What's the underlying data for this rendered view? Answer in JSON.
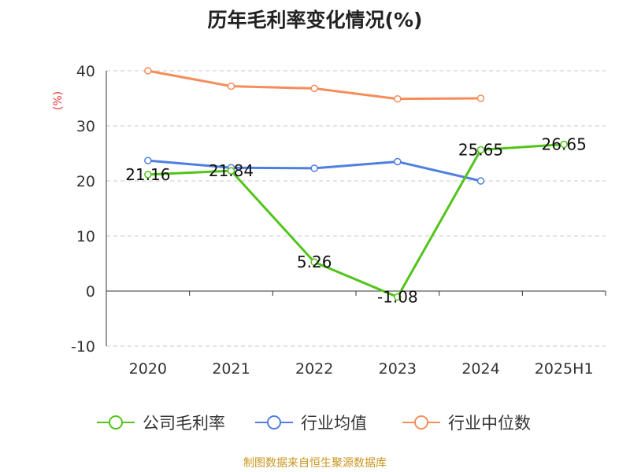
{
  "title": "历年毛利率变化情况(%)",
  "source": "制图数据来自恒生聚源数据库",
  "chart_data": {
    "type": "line",
    "title": "历年毛利率变化情况(%)",
    "ylabel": "(%)",
    "categories": [
      "2020",
      "2021",
      "2022",
      "2023",
      "2024",
      "2025H1"
    ],
    "ylim": [
      -10,
      40
    ],
    "yticks": [
      -10,
      0,
      10,
      20,
      30,
      40
    ],
    "grid": true,
    "legend_position": "bottom",
    "series": [
      {
        "name": "公司毛利率",
        "color": "#52c41a",
        "values": [
          21.16,
          21.84,
          5.26,
          -1.08,
          25.65,
          26.65
        ],
        "labels": true
      },
      {
        "name": "行业均值",
        "color": "#4e7fe0",
        "values": [
          23.7,
          22.4,
          22.3,
          23.5,
          20.0,
          null
        ],
        "labels": false
      },
      {
        "name": "行业中位数",
        "color": "#f58d5b",
        "values": [
          40.0,
          37.2,
          36.8,
          34.9,
          35.0,
          null
        ],
        "labels": false
      }
    ]
  }
}
